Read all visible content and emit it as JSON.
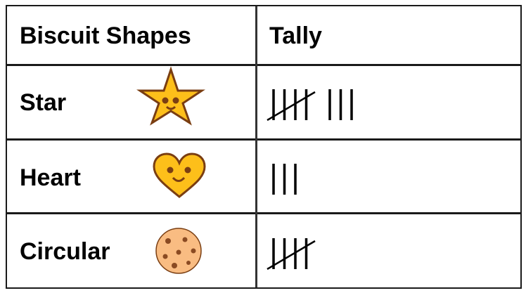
{
  "table": {
    "headers": [
      "Biscuit Shapes",
      "Tally"
    ],
    "rows": [
      {
        "shape": "Star",
        "icon": "smiling-star-biscuit-icon",
        "tally": 8
      },
      {
        "shape": "Heart",
        "icon": "smiling-heart-biscuit-icon",
        "tally": 3
      },
      {
        "shape": "Circular",
        "icon": "chocolate-chip-cookie-icon",
        "tally": 5
      }
    ]
  },
  "colors": {
    "biscuit_yellow": "#FDBF1A",
    "outline_brown": "#7A3E12",
    "cookie": "#F9BC82"
  }
}
